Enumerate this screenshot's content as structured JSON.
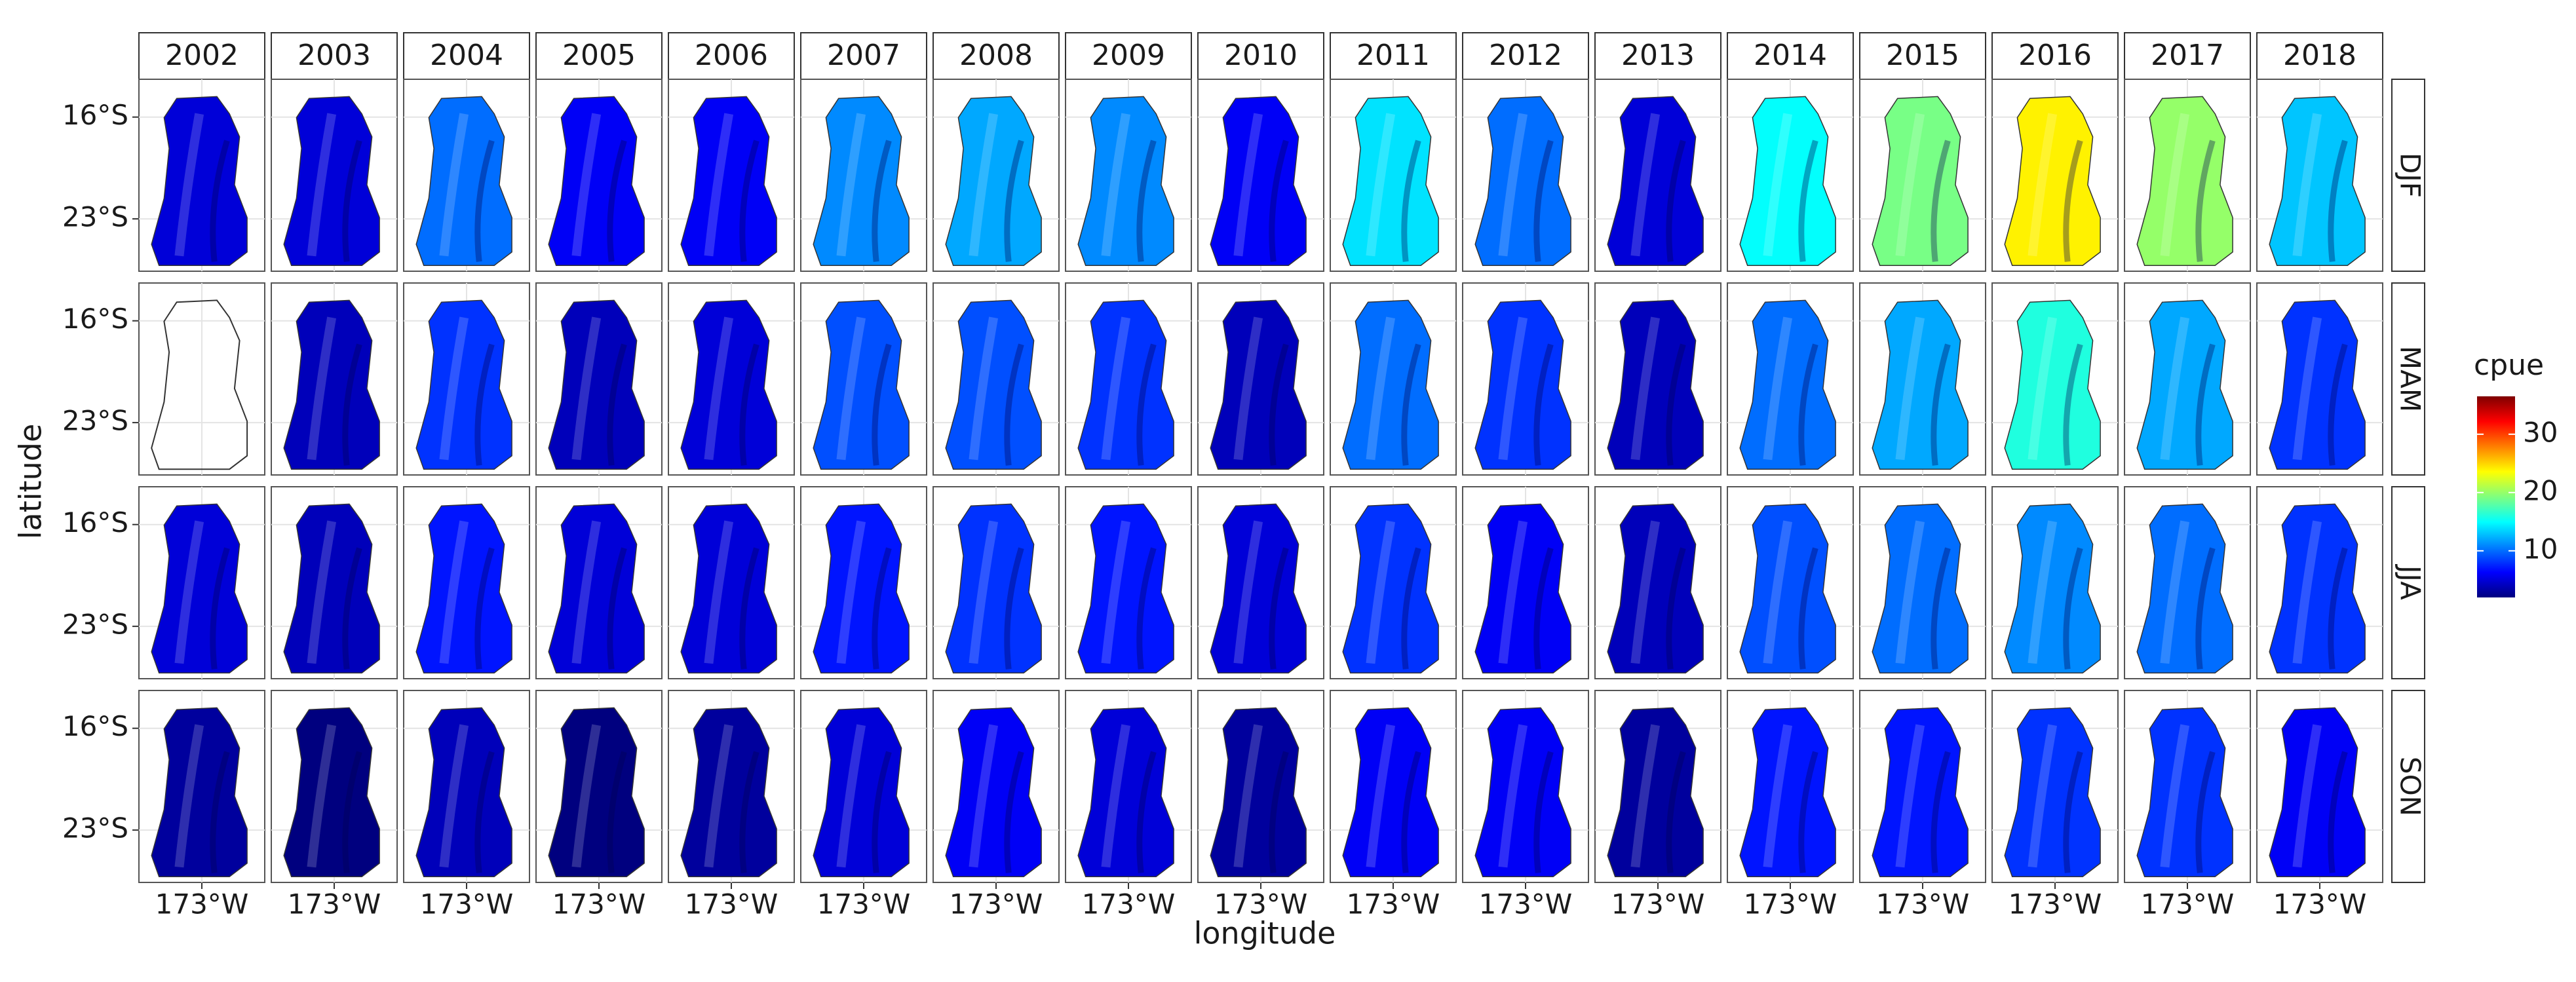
{
  "chart_data": {
    "type": "raster-facet",
    "x_label": "longitude",
    "y_label": "latitude",
    "columns": [
      "2002",
      "2003",
      "2004",
      "2005",
      "2006",
      "2007",
      "2008",
      "2009",
      "2010",
      "2011",
      "2012",
      "2013",
      "2014",
      "2015",
      "2016",
      "2017",
      "2018"
    ],
    "xlim": [
      -176.5,
      -169.5
    ],
    "xticks": [
      {
        "value": -173,
        "label": "173°W"
      }
    ],
    "ylim": [
      -26.6,
      -13.4
    ],
    "yticks": [
      {
        "value": -16,
        "label": "16°S"
      },
      {
        "value": -23,
        "label": "23°S"
      }
    ],
    "grid": true,
    "colorbar": {
      "title": "cpue",
      "lim": [
        2,
        36.5
      ],
      "ticks": [
        10,
        20,
        30
      ],
      "colors": [
        "#00007f",
        "#0000ff",
        "#007fff",
        "#00ffff",
        "#7fff7f",
        "#ffff00",
        "#ff7f00",
        "#ff0000",
        "#7f0000"
      ]
    },
    "series": [
      {
        "name": "DJF",
        "values": [
          5,
          5,
          10,
          6,
          6,
          11,
          12,
          11,
          6,
          14,
          10,
          5,
          15,
          19,
          24,
          20,
          13
        ]
      },
      {
        "name": "MAM",
        "values": [
          null,
          4,
          8,
          4,
          5,
          9,
          9,
          8,
          4,
          10,
          8,
          4,
          10,
          12,
          16,
          12,
          8
        ]
      },
      {
        "name": "JJA",
        "values": [
          5,
          4,
          7,
          5,
          5,
          7,
          8,
          7,
          5,
          8,
          6,
          4,
          9,
          10,
          11,
          10,
          8
        ]
      },
      {
        "name": "SON",
        "values": [
          3,
          2,
          4,
          2,
          3,
          5,
          6,
          5,
          3,
          6,
          6,
          3,
          7,
          7,
          8,
          8,
          6
        ]
      }
    ]
  }
}
